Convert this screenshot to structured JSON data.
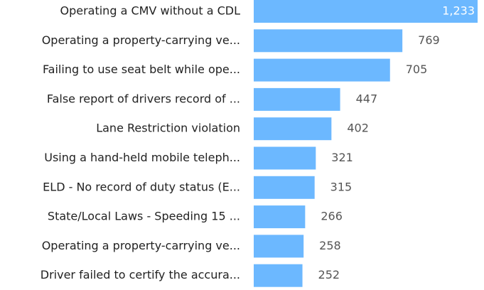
{
  "chart_data": {
    "type": "bar",
    "orientation": "horizontal",
    "categories": [
      "Operating a CMV without a CDL",
      "Operating a property-carrying ve...",
      "Failing to use seat belt while ope...",
      "False report of drivers record of ...",
      "Lane Restriction violation",
      "Using a hand-held mobile teleph...",
      "ELD - No record of duty status (E...",
      "State/Local Laws - Speeding 15 ...",
      "Operating a property-carrying ve...",
      "Driver failed to certify the accura..."
    ],
    "values": [
      1233,
      769,
      705,
      447,
      402,
      321,
      315,
      266,
      258,
      252
    ],
    "value_labels": [
      "1,233",
      "769",
      "705",
      "447",
      "402",
      "321",
      "315",
      "266",
      "258",
      "252"
    ],
    "color": "#6cb8ff"
  }
}
